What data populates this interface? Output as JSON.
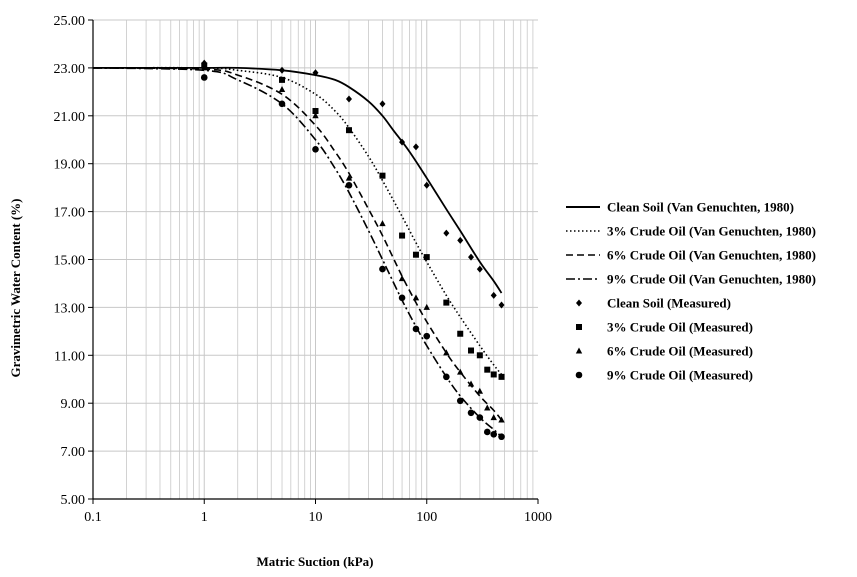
{
  "chart_data": {
    "type": "scatter",
    "title": "",
    "xlabel": "Matric Suction (kPa)",
    "ylabel": "Gravimetric Water Content (%)",
    "xscale": "log",
    "xlim": [
      0.1,
      1000
    ],
    "ylim": [
      5,
      25
    ],
    "xticks": [
      0.1,
      1,
      10,
      100,
      1000
    ],
    "xtick_labels": [
      "0.1",
      "1",
      "10",
      "100",
      "1000"
    ],
    "yticks": [
      5,
      7,
      9,
      11,
      13,
      15,
      17,
      19,
      21,
      23,
      25
    ],
    "ytick_labels": [
      "5.00",
      "7.00",
      "9.00",
      "11.00",
      "13.00",
      "15.00",
      "17.00",
      "19.00",
      "21.00",
      "23.00",
      "25.00"
    ],
    "grid": true,
    "legend_position": "right",
    "series": [
      {
        "name": "Clean Soil (Van Genuchten, 1980)",
        "kind": "line",
        "dash": "solid",
        "color": "#000000",
        "x": [
          0.1,
          1,
          2,
          5,
          10,
          15,
          20,
          30,
          40,
          50,
          70,
          100,
          150,
          200,
          300,
          400,
          470
        ],
        "y": [
          23.0,
          23.0,
          23.0,
          22.9,
          22.7,
          22.5,
          22.2,
          21.6,
          21.0,
          20.4,
          19.5,
          18.4,
          17.1,
          16.2,
          14.9,
          14.1,
          13.6
        ]
      },
      {
        "name": "3% Crude Oil (Van Genuchten, 1980)",
        "kind": "line",
        "dash": "dotted",
        "color": "#000000",
        "x": [
          0.1,
          1,
          2,
          5,
          10,
          15,
          20,
          30,
          40,
          60,
          80,
          100,
          150,
          200,
          300,
          400,
          470
        ],
        "y": [
          23.0,
          23.0,
          22.9,
          22.6,
          21.9,
          21.2,
          20.5,
          19.3,
          18.3,
          16.8,
          15.7,
          14.9,
          13.5,
          12.6,
          11.4,
          10.6,
          10.2
        ]
      },
      {
        "name": "6% Crude Oil (Van Genuchten, 1980)",
        "kind": "line",
        "dash": "dashed",
        "color": "#000000",
        "x": [
          0.1,
          1,
          2,
          5,
          10,
          15,
          20,
          30,
          40,
          60,
          80,
          100,
          150,
          200,
          300,
          400,
          470
        ],
        "y": [
          23.0,
          22.95,
          22.7,
          21.9,
          20.6,
          19.5,
          18.6,
          17.1,
          16.0,
          14.3,
          13.2,
          12.4,
          11.1,
          10.3,
          9.3,
          8.7,
          8.3
        ]
      },
      {
        "name": "9% Crude Oil (Van Genuchten, 1980)",
        "kind": "line",
        "dash": "dashdot",
        "color": "#000000",
        "x": [
          0.1,
          1,
          2,
          5,
          10,
          15,
          20,
          30,
          40,
          60,
          80,
          100,
          150,
          200,
          300,
          400,
          470
        ],
        "y": [
          23.0,
          22.9,
          22.5,
          21.5,
          20.0,
          18.8,
          17.8,
          16.2,
          15.0,
          13.3,
          12.2,
          11.4,
          10.1,
          9.3,
          8.4,
          7.9,
          7.6
        ]
      },
      {
        "name": "Clean Soil (Measured)",
        "kind": "scatter",
        "marker": "diamond",
        "color": "#000000",
        "x": [
          1,
          5,
          10,
          20,
          40,
          60,
          80,
          100,
          150,
          200,
          250,
          300,
          400,
          470
        ],
        "y": [
          23.2,
          22.9,
          22.8,
          21.7,
          21.5,
          19.9,
          19.7,
          18.1,
          16.1,
          15.8,
          15.1,
          14.6,
          13.5,
          13.1
        ]
      },
      {
        "name": "3% Crude Oil (Measured)",
        "kind": "scatter",
        "marker": "square",
        "color": "#000000",
        "x": [
          1,
          5,
          10,
          20,
          40,
          60,
          80,
          100,
          150,
          200,
          250,
          300,
          350,
          400,
          470
        ],
        "y": [
          23.1,
          22.5,
          21.2,
          20.4,
          18.5,
          16.0,
          15.2,
          15.1,
          13.2,
          11.9,
          11.2,
          11.0,
          10.4,
          10.2,
          10.1
        ]
      },
      {
        "name": "6% Crude Oil (Measured)",
        "kind": "scatter",
        "marker": "triangle",
        "color": "#000000",
        "x": [
          1,
          5,
          10,
          20,
          40,
          60,
          80,
          100,
          150,
          200,
          250,
          300,
          350,
          400,
          470
        ],
        "y": [
          23.0,
          22.1,
          21.0,
          18.4,
          16.5,
          14.2,
          13.4,
          13.0,
          11.1,
          10.3,
          9.8,
          9.5,
          8.8,
          8.4,
          8.3
        ]
      },
      {
        "name": "9% Crude Oil (Measured)",
        "kind": "scatter",
        "marker": "circle",
        "color": "#000000",
        "x": [
          1,
          5,
          10,
          20,
          40,
          60,
          80,
          100,
          150,
          200,
          250,
          300,
          350,
          400,
          470
        ],
        "y": [
          22.6,
          21.5,
          19.6,
          18.1,
          14.6,
          13.4,
          12.1,
          11.8,
          10.1,
          9.1,
          8.6,
          8.4,
          7.8,
          7.7,
          7.6
        ]
      }
    ]
  }
}
